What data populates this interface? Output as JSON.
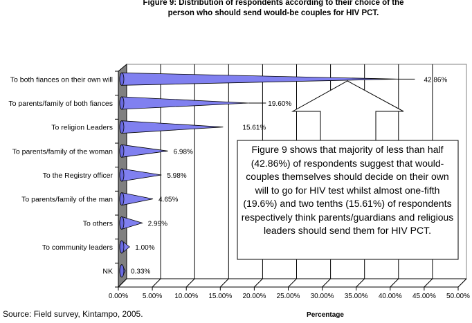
{
  "chart_data": {
    "type": "bar",
    "title": "Figure 9: Distribution of respondents according to their choice of the person who should send would-be couples for HIV PCT.",
    "xlabel": "Percentage",
    "ylabel": "",
    "categories": [
      "To both fiances on their own will",
      "To parents/family of both fiances",
      "To religion  Leaders",
      "To parents/family of the woman",
      "To the Registry officer",
      "To parents/family of the man",
      "To others",
      "To community  leaders",
      "NK"
    ],
    "values": [
      42.86,
      19.6,
      15.61,
      6.98,
      5.98,
      4.65,
      2.99,
      1.0,
      0.33
    ],
    "data_labels": [
      "42.86%",
      "19.60%",
      "15.61%",
      "6.98%",
      "5.98%",
      "4.65%",
      "2.99%",
      "1.00%",
      "0.33%"
    ],
    "xlim": [
      0,
      50
    ],
    "xticks": [
      "0.00%",
      "5.00%",
      "10.00%",
      "15.00%",
      "20.00%",
      "25.00%",
      "30.00%",
      "35.00%",
      "40.00%",
      "45.00%",
      "50.00%"
    ],
    "orientation": "horizontal",
    "bar_shape": "cone",
    "grid": true,
    "bar_color": "#8080f0",
    "annotation": "Figure 9 shows that majority of less than half (42.86%) of respondents suggest that would-couples themselves should decide on their own will to go for HIV test whilst almost one-fifth (19.6%) and two tenths (15.61%) of respondents respectively think parents/guardians and religious leaders should send them for HIV PCT.",
    "source": "Source: Field survey, Kintampo, 2005."
  }
}
